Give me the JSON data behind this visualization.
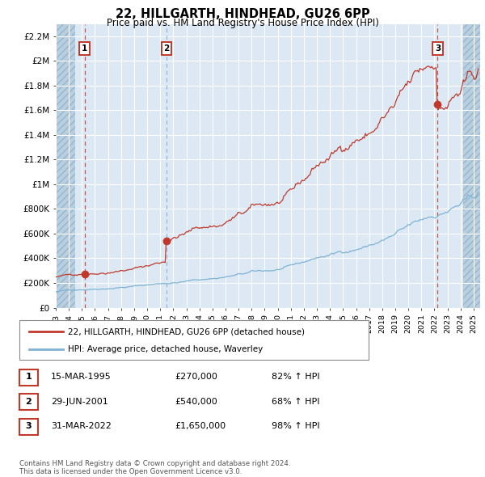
{
  "title": "22, HILLGARTH, HINDHEAD, GU26 6PP",
  "subtitle": "Price paid vs. HM Land Registry's House Price Index (HPI)",
  "legend_line1": "22, HILLGARTH, HINDHEAD, GU26 6PP (detached house)",
  "legend_line2": "HPI: Average price, detached house, Waverley",
  "transactions": [
    {
      "num": 1,
      "date": "15-MAR-1995",
      "price": 270000,
      "pct": "82% ↑ HPI",
      "x_year": 1995.21
    },
    {
      "num": 2,
      "date": "29-JUN-2001",
      "price": 540000,
      "pct": "68% ↑ HPI",
      "x_year": 2001.49
    },
    {
      "num": 3,
      "date": "31-MAR-2022",
      "price": 1650000,
      "pct": "98% ↑ HPI",
      "x_year": 2022.25
    }
  ],
  "copyright": "Contains HM Land Registry data © Crown copyright and database right 2024.\nThis data is licensed under the Open Government Licence v3.0.",
  "ylim": [
    0,
    2300000
  ],
  "yticks": [
    0,
    200000,
    400000,
    600000,
    800000,
    1000000,
    1200000,
    1400000,
    1600000,
    1800000,
    2000000,
    2200000
  ],
  "ytick_labels": [
    "£0",
    "£200K",
    "£400K",
    "£600K",
    "£800K",
    "£1M",
    "£1.2M",
    "£1.4M",
    "£1.6M",
    "£1.8M",
    "£2M",
    "£2.2M"
  ],
  "xlim_start": 1993.0,
  "xlim_end": 2025.5,
  "red_color": "#c0392b",
  "blue_color": "#7fb3d3",
  "plot_bg": "#dce9f5",
  "grid_color": "#ffffff",
  "hatch_color": "#b8cfe0"
}
